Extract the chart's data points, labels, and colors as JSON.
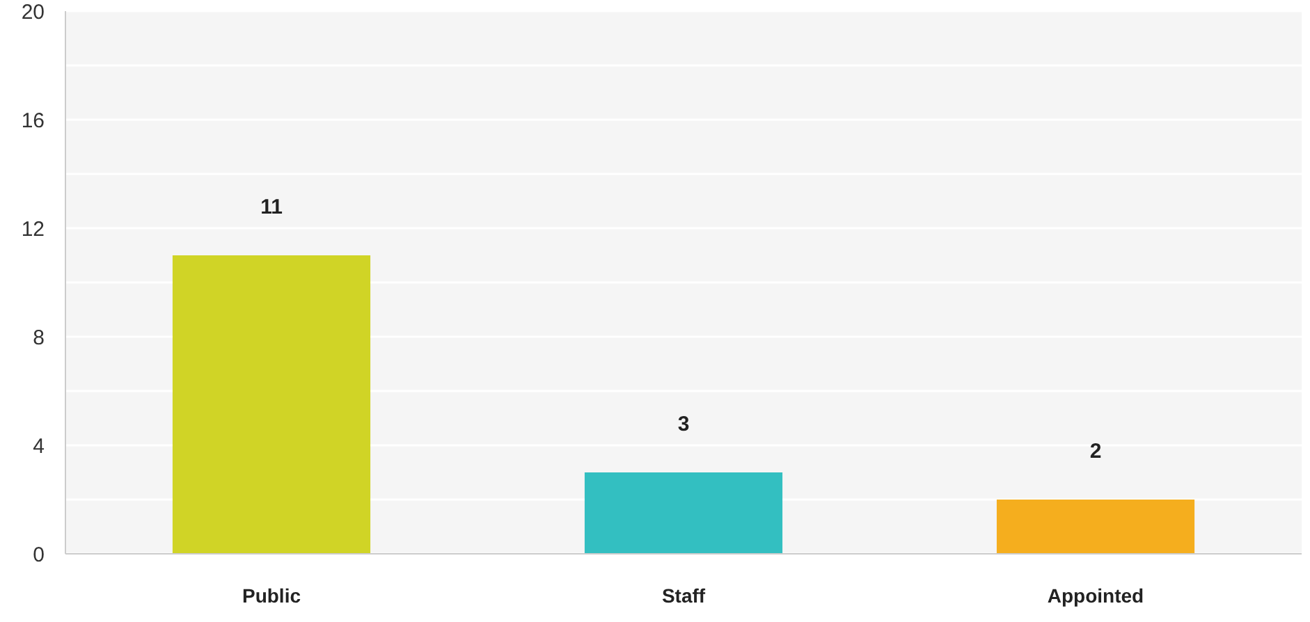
{
  "chart_data": {
    "type": "bar",
    "categories": [
      "Public",
      "Staff",
      "Appointed"
    ],
    "values": [
      11,
      3,
      2
    ],
    "colors": [
      "#d0d426",
      "#33bfc1",
      "#f5ae1e"
    ],
    "ylim": [
      0,
      20
    ],
    "yticks": [
      0,
      {
        "value": 2,
        "label": null
      },
      4,
      {
        "value": 6,
        "label": null
      },
      8,
      {
        "value": 10,
        "label": null
      },
      12,
      {
        "value": 14,
        "label": null
      },
      16,
      {
        "value": 18,
        "label": null
      },
      20
    ],
    "grid": true,
    "data_labels": true
  }
}
